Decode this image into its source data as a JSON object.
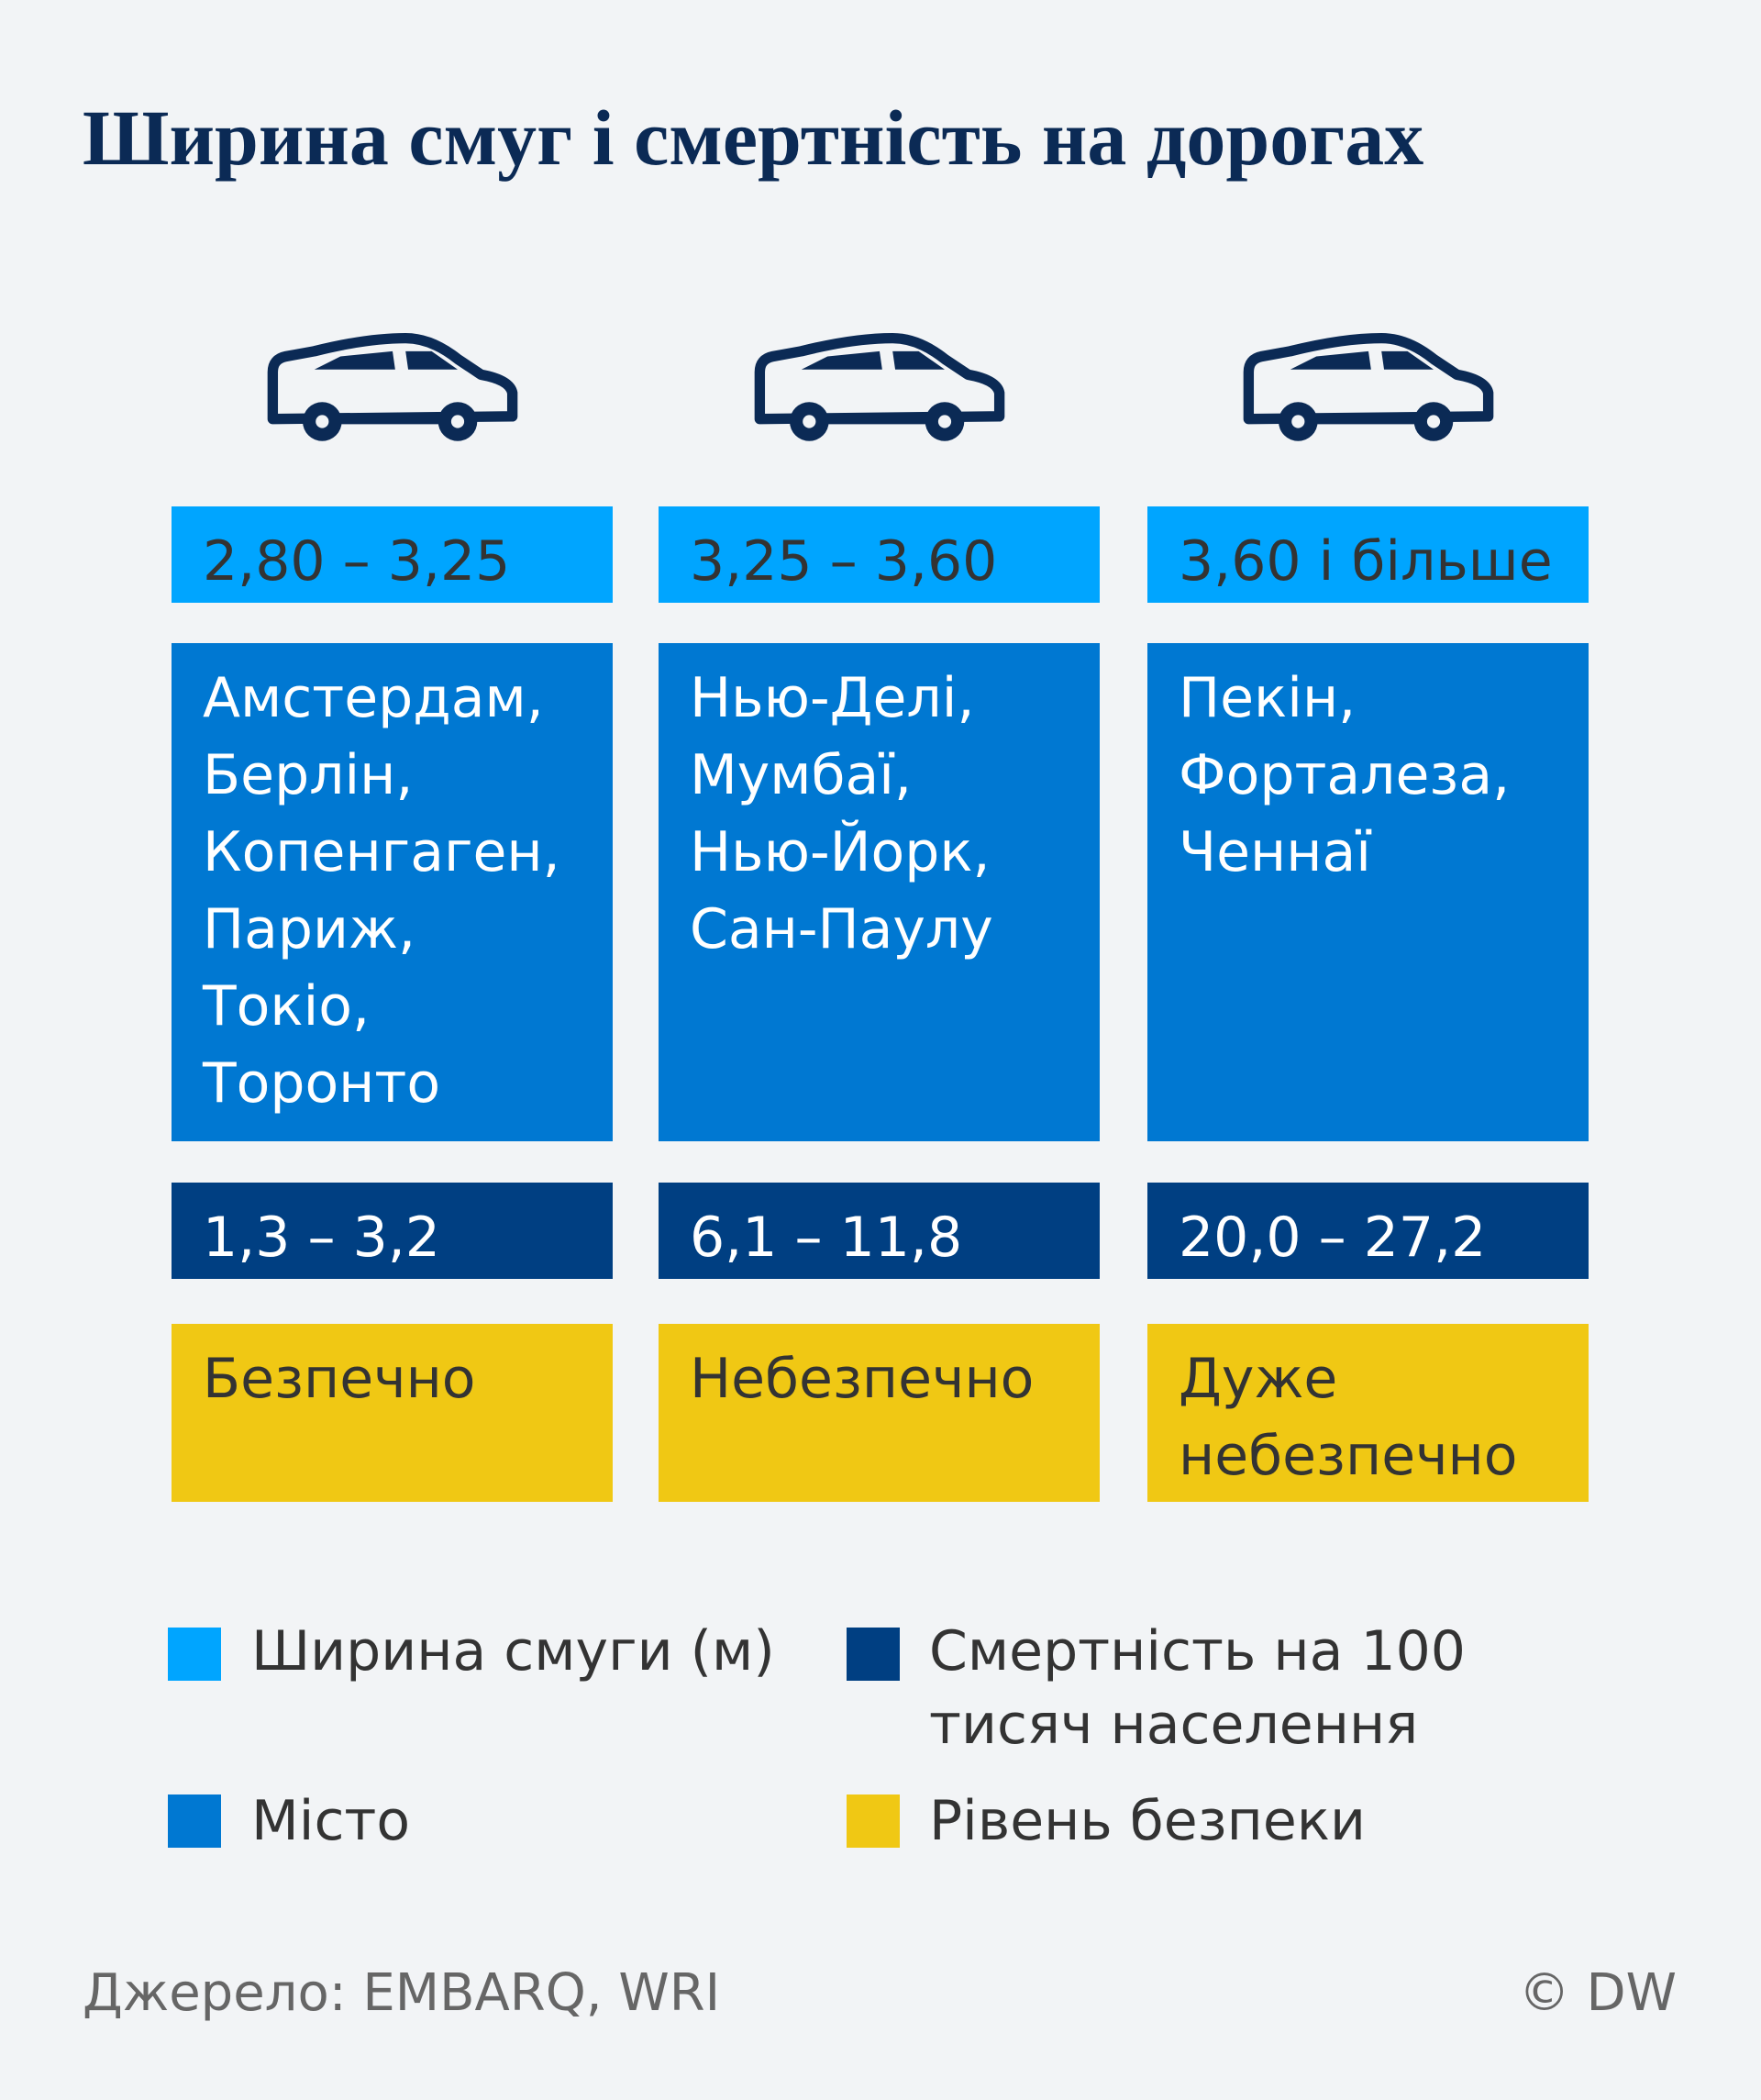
{
  "title": "Ширина смуг і смертність на дорогах",
  "columns": [
    {
      "lane_width": "2,80 – 3,25",
      "cities": [
        "Амстердам,",
        "Берлін,",
        "Копенгаген,",
        "Париж,",
        "Токіо,",
        "Торонто"
      ],
      "mortality": "1,3 – 3,2",
      "safety": "Безпечно"
    },
    {
      "lane_width": "3,25 – 3,60",
      "cities": [
        "Нью-Делі,",
        "Мумбаї,",
        "Нью-Йорк,",
        "Сан-Паулу"
      ],
      "mortality": "6,1 – 11,8",
      "safety": "Небезпечно"
    },
    {
      "lane_width": "3,60 і більше",
      "cities": [
        "Пекін,",
        "Форталеза,",
        "Ченнаї"
      ],
      "mortality": "20,0 – 27,2",
      "safety": "Дуже небезпечно"
    }
  ],
  "legend": [
    {
      "key": "lane_width",
      "label": "Ширина смуги (м)",
      "color": "#00a5ff"
    },
    {
      "key": "mortality",
      "label": "Смертність на 100 тисяч населення",
      "color": "#003f82"
    },
    {
      "key": "cities",
      "label": "Місто",
      "color": "#0078d2"
    },
    {
      "key": "safety",
      "label": "Рівень безпеки",
      "color": "#f0c814"
    }
  ],
  "source": "Джерело: EMBARQ, WRI",
  "copyright": "© DW"
}
